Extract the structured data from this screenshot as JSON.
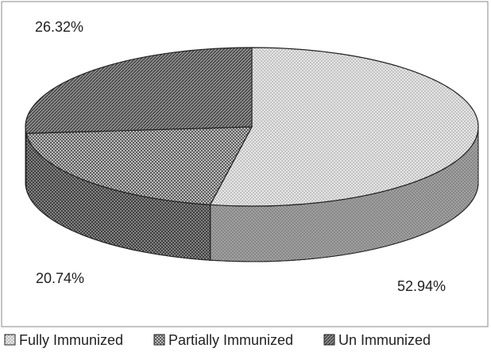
{
  "chart_data": {
    "type": "pie",
    "categories": [
      "Fully Immunized",
      "Partially Immunized",
      "Un Immunized"
    ],
    "values": [
      52.94,
      20.74,
      26.32
    ],
    "value_labels": [
      "52.94%",
      "20.74%",
      "26.32%"
    ],
    "colors": [
      "#e6e6e6",
      "#d0d0d0",
      "#8c8c8c"
    ],
    "legend": "bottom"
  }
}
